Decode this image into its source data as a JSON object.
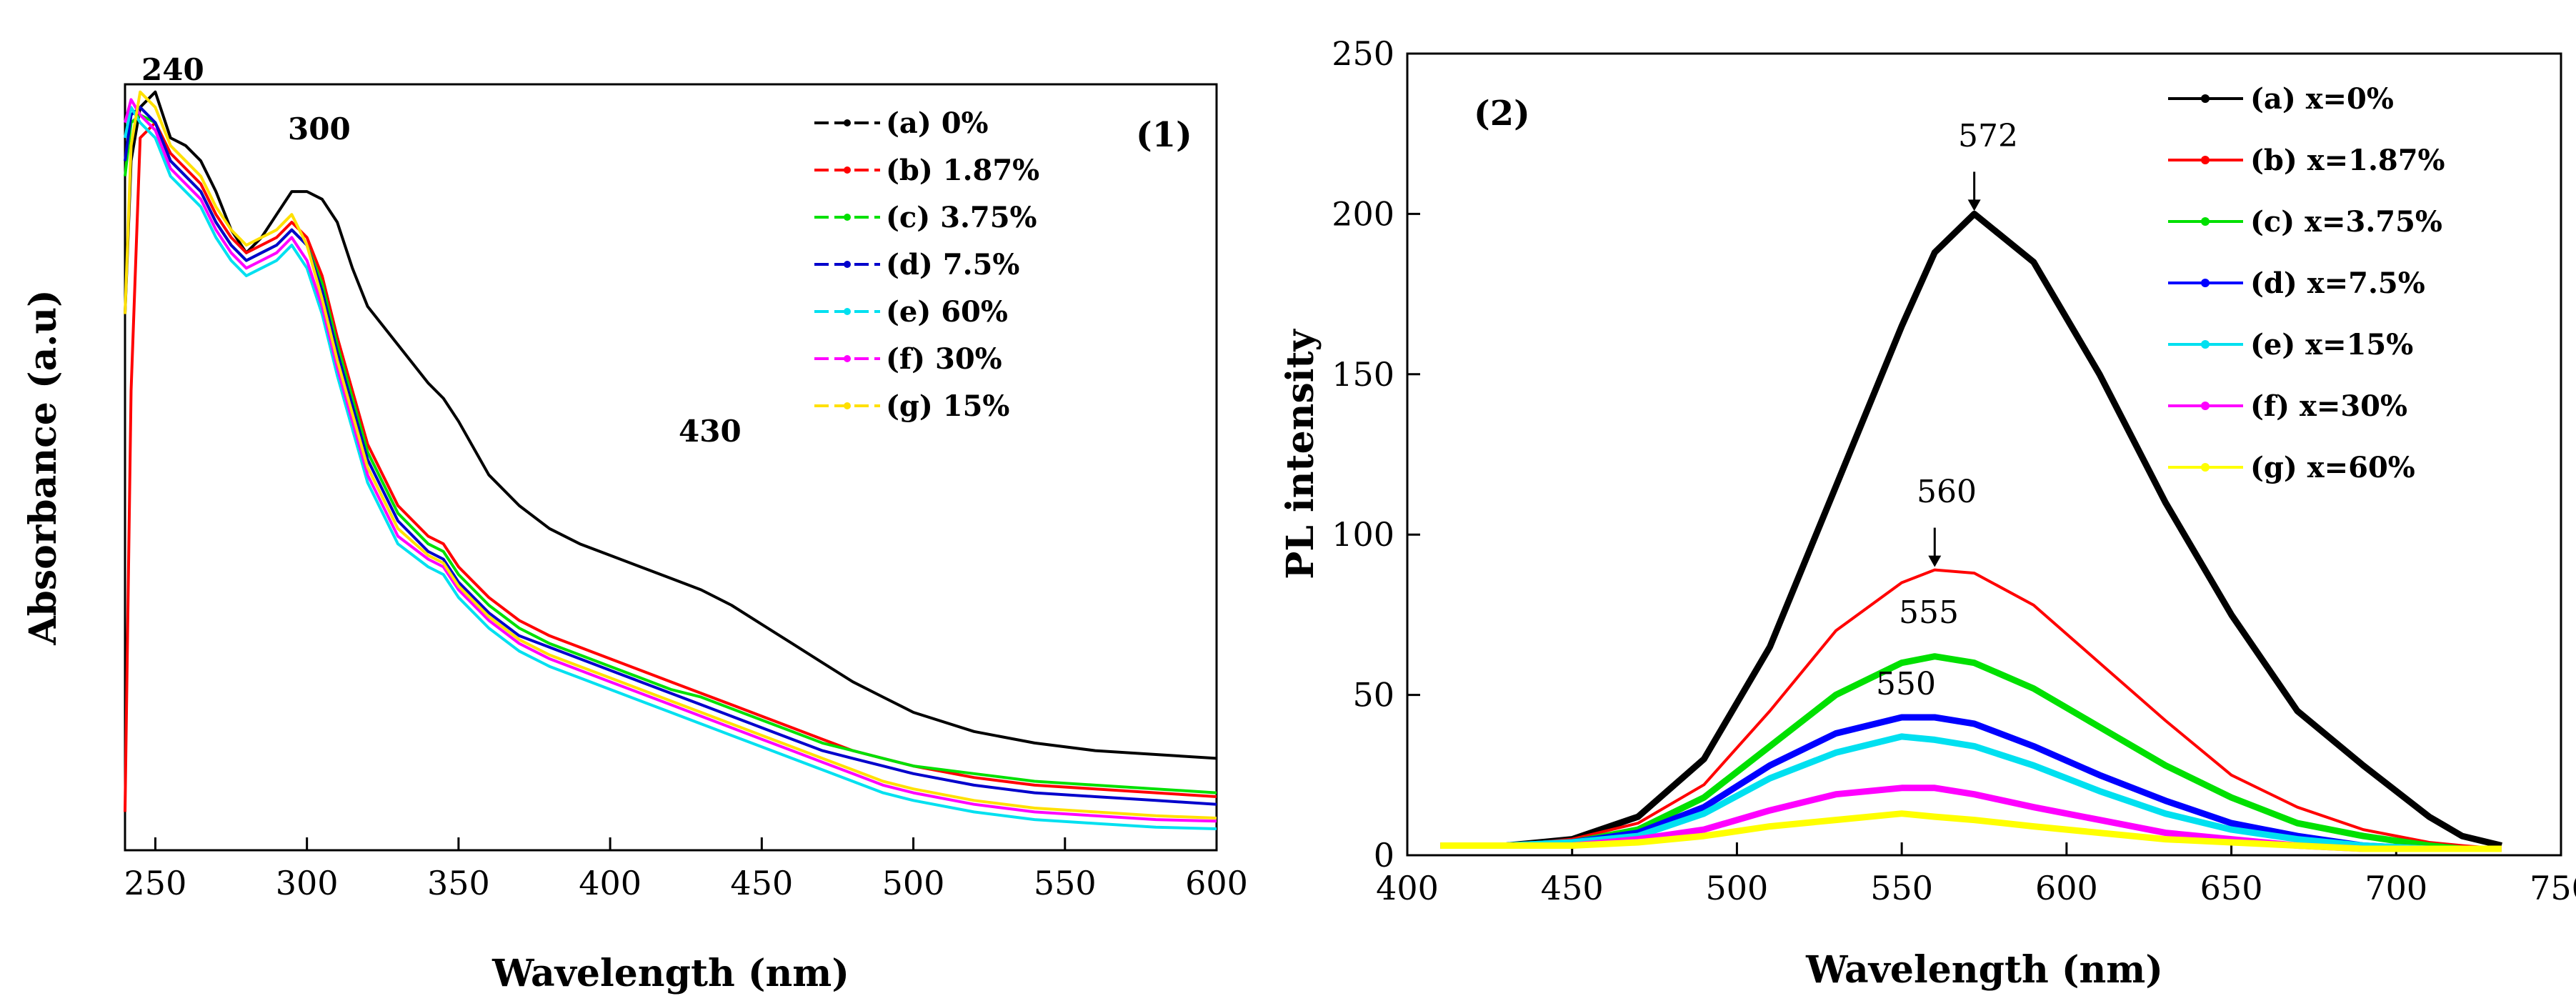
{
  "chart_data": [
    {
      "type": "line",
      "panel_label": "(1)",
      "title": "",
      "xlabel": "Wavelength (nm)",
      "ylabel": "Absorbance (a.u)",
      "xlim": [
        240,
        600
      ],
      "ylim": [
        0,
        1
      ],
      "xticks": [
        250,
        300,
        350,
        400,
        450,
        500,
        550,
        600
      ],
      "y_tick_labels_shown": false,
      "grid": false,
      "legend_position": "top-right",
      "x": [
        240,
        242,
        245,
        250,
        255,
        260,
        265,
        270,
        275,
        280,
        285,
        290,
        295,
        300,
        305,
        310,
        315,
        320,
        330,
        340,
        345,
        350,
        360,
        370,
        380,
        390,
        400,
        410,
        420,
        430,
        440,
        450,
        460,
        470,
        480,
        490,
        500,
        520,
        540,
        560,
        580,
        600
      ],
      "series": [
        {
          "name": "(a) 0%",
          "color": "#000000",
          "values": [
            0.7,
            0.9,
            0.97,
            0.99,
            0.93,
            0.92,
            0.9,
            0.86,
            0.81,
            0.78,
            0.8,
            0.83,
            0.86,
            0.86,
            0.85,
            0.82,
            0.76,
            0.71,
            0.66,
            0.61,
            0.59,
            0.56,
            0.49,
            0.45,
            0.42,
            0.4,
            0.385,
            0.37,
            0.355,
            0.34,
            0.32,
            0.295,
            0.27,
            0.245,
            0.22,
            0.2,
            0.18,
            0.155,
            0.14,
            0.13,
            0.125,
            0.12
          ]
        },
        {
          "name": "(b) 1.87%",
          "color": "#ff0000",
          "values": [
            0.05,
            0.6,
            0.93,
            0.95,
            0.91,
            0.89,
            0.87,
            0.83,
            0.8,
            0.78,
            0.79,
            0.8,
            0.82,
            0.8,
            0.75,
            0.67,
            0.6,
            0.53,
            0.45,
            0.41,
            0.4,
            0.37,
            0.33,
            0.3,
            0.28,
            0.265,
            0.25,
            0.235,
            0.22,
            0.205,
            0.19,
            0.175,
            0.16,
            0.145,
            0.13,
            0.12,
            0.11,
            0.095,
            0.085,
            0.08,
            0.075,
            0.07
          ]
        },
        {
          "name": "(c) 3.75%",
          "color": "#00e000",
          "values": [
            0.88,
            0.95,
            0.96,
            0.95,
            0.9,
            0.88,
            0.86,
            0.82,
            0.79,
            0.77,
            0.78,
            0.79,
            0.81,
            0.79,
            0.74,
            0.66,
            0.59,
            0.52,
            0.44,
            0.4,
            0.39,
            0.36,
            0.32,
            0.29,
            0.27,
            0.255,
            0.24,
            0.225,
            0.21,
            0.2,
            0.185,
            0.17,
            0.155,
            0.14,
            0.13,
            0.12,
            0.11,
            0.1,
            0.09,
            0.085,
            0.08,
            0.075
          ]
        },
        {
          "name": "(d) 7.5%",
          "color": "#0000cc",
          "values": [
            0.9,
            0.96,
            0.97,
            0.95,
            0.9,
            0.88,
            0.86,
            0.82,
            0.79,
            0.77,
            0.78,
            0.79,
            0.81,
            0.79,
            0.73,
            0.65,
            0.58,
            0.51,
            0.43,
            0.39,
            0.38,
            0.35,
            0.31,
            0.28,
            0.265,
            0.25,
            0.235,
            0.22,
            0.205,
            0.19,
            0.175,
            0.16,
            0.145,
            0.13,
            0.12,
            0.11,
            0.1,
            0.085,
            0.075,
            0.07,
            0.065,
            0.06
          ]
        },
        {
          "name": "(e)  60%",
          "color": "#00e0f0",
          "values": [
            0.93,
            0.97,
            0.95,
            0.93,
            0.88,
            0.86,
            0.84,
            0.8,
            0.77,
            0.75,
            0.76,
            0.77,
            0.79,
            0.76,
            0.7,
            0.62,
            0.55,
            0.48,
            0.4,
            0.37,
            0.36,
            0.33,
            0.29,
            0.26,
            0.24,
            0.225,
            0.21,
            0.195,
            0.18,
            0.165,
            0.15,
            0.135,
            0.12,
            0.105,
            0.09,
            0.075,
            0.065,
            0.05,
            0.04,
            0.035,
            0.03,
            0.028
          ]
        },
        {
          "name": "(f) 30%",
          "color": "#ff00ff",
          "values": [
            0.95,
            0.98,
            0.96,
            0.94,
            0.89,
            0.87,
            0.85,
            0.81,
            0.78,
            0.76,
            0.77,
            0.78,
            0.8,
            0.77,
            0.71,
            0.63,
            0.56,
            0.49,
            0.41,
            0.38,
            0.37,
            0.34,
            0.3,
            0.27,
            0.25,
            0.235,
            0.22,
            0.205,
            0.19,
            0.175,
            0.16,
            0.145,
            0.13,
            0.115,
            0.1,
            0.085,
            0.075,
            0.06,
            0.05,
            0.045,
            0.04,
            0.038
          ]
        },
        {
          "name": "(g) 15%",
          "color": "#ffe000",
          "values": [
            0.7,
            0.92,
            0.99,
            0.97,
            0.92,
            0.9,
            0.88,
            0.84,
            0.81,
            0.79,
            0.8,
            0.81,
            0.83,
            0.79,
            0.72,
            0.64,
            0.57,
            0.5,
            0.42,
            0.385,
            0.375,
            0.345,
            0.305,
            0.275,
            0.255,
            0.24,
            0.225,
            0.21,
            0.195,
            0.18,
            0.165,
            0.15,
            0.135,
            0.12,
            0.105,
            0.09,
            0.08,
            0.065,
            0.055,
            0.05,
            0.045,
            0.042
          ]
        }
      ],
      "annotations": [
        {
          "text": "240",
          "x": 245,
          "y": 1.05
        },
        {
          "text": "300",
          "x": 300,
          "y": 0.99
        },
        {
          "text": "430",
          "x": 430,
          "y": 0.64
        }
      ]
    },
    {
      "type": "line",
      "panel_label": "(2)",
      "title": "",
      "xlabel": "Wavelength (nm)",
      "ylabel": "PL intensity",
      "xlim": [
        400,
        750
      ],
      "ylim": [
        0,
        250
      ],
      "xticks": [
        400,
        450,
        500,
        550,
        600,
        650,
        700,
        750
      ],
      "yticks": [
        0,
        50,
        100,
        150,
        200,
        250
      ],
      "grid": false,
      "legend_position": "top-right",
      "x": [
        410,
        430,
        450,
        470,
        490,
        510,
        530,
        550,
        560,
        572,
        590,
        610,
        630,
        650,
        670,
        690,
        710,
        720,
        732
      ],
      "series": [
        {
          "name": "(a) x=0%",
          "color": "#000000",
          "values": [
            3,
            3,
            5,
            12,
            30,
            65,
            115,
            165,
            188,
            200,
            185,
            150,
            110,
            75,
            45,
            28,
            12,
            6,
            3
          ]
        },
        {
          "name": "(b) x=1.87%",
          "color": "#ff0000",
          "values": [
            3,
            3,
            5,
            10,
            22,
            45,
            70,
            85,
            89,
            88,
            78,
            60,
            42,
            25,
            15,
            8,
            4,
            3,
            2
          ]
        },
        {
          "name": "(c) x=3.75%",
          "color": "#00e000",
          "values": [
            3,
            3,
            4,
            8,
            18,
            34,
            50,
            60,
            62,
            60,
            52,
            40,
            28,
            18,
            10,
            6,
            3,
            2,
            2
          ]
        },
        {
          "name": "(d) x=7.5%",
          "color": "#0000ff",
          "values": [
            3,
            3,
            4,
            7,
            15,
            28,
            38,
            43,
            43,
            41,
            34,
            25,
            17,
            10,
            6,
            3,
            2,
            2,
            2
          ]
        },
        {
          "name": "(e) x=15%",
          "color": "#00e0f0",
          "values": [
            3,
            3,
            4,
            6,
            13,
            24,
            32,
            37,
            36,
            34,
            28,
            20,
            13,
            8,
            5,
            3,
            2,
            2,
            2
          ]
        },
        {
          "name": "(f) x=30%",
          "color": "#ff00ff",
          "values": [
            3,
            3,
            3,
            5,
            8,
            14,
            19,
            21,
            21,
            19,
            15,
            11,
            7,
            5,
            3,
            2,
            2,
            2,
            2
          ]
        },
        {
          "name": "(g) x=60%",
          "color": "#ffff00",
          "values": [
            3,
            3,
            3,
            4,
            6,
            9,
            11,
            13,
            12,
            11,
            9,
            7,
            5,
            4,
            3,
            2,
            2,
            2,
            2
          ]
        }
      ],
      "annotations": [
        {
          "text": "572",
          "x": 572,
          "y": 200,
          "arrow": true
        },
        {
          "text": "560",
          "x": 560,
          "y": 89,
          "arrow": true
        },
        {
          "text": "555",
          "x": 555,
          "y": 62,
          "arrow": false
        },
        {
          "text": "550",
          "x": 550,
          "y": 43,
          "arrow": false
        }
      ]
    }
  ]
}
